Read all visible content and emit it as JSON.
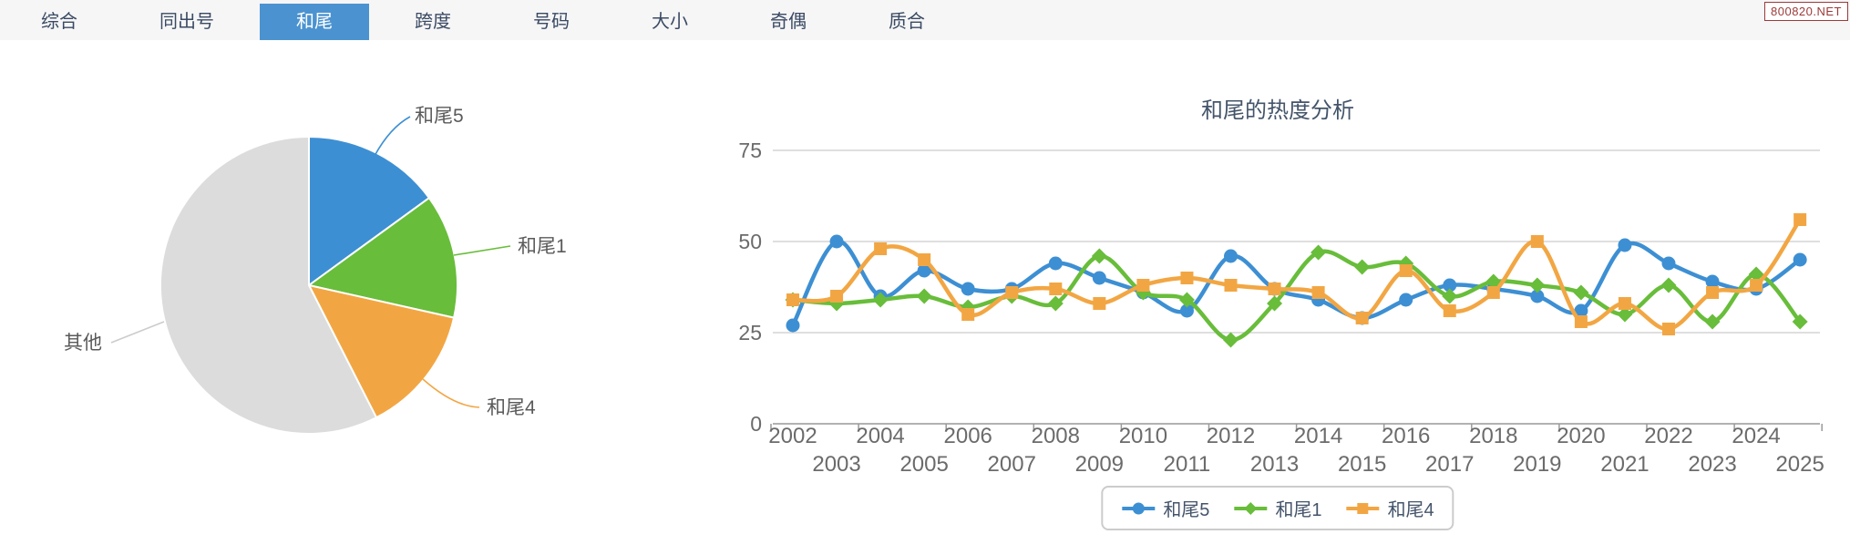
{
  "tabs": {
    "items": [
      {
        "id": "zonghe",
        "label": "综合",
        "active": false
      },
      {
        "id": "tongchuhao",
        "label": "同出号",
        "active": false
      },
      {
        "id": "hewei",
        "label": "和尾",
        "active": true
      },
      {
        "id": "kuadu",
        "label": "跨度",
        "active": false
      },
      {
        "id": "haoma",
        "label": "号码",
        "active": false
      },
      {
        "id": "daxiao",
        "label": "大小",
        "active": false
      },
      {
        "id": "jiou",
        "label": "奇偶",
        "active": false
      },
      {
        "id": "zhihe",
        "label": "质合",
        "active": false
      }
    ]
  },
  "badge": {
    "text": "800820.NET"
  },
  "theme": {
    "tab_active_bg": "#4b93d0",
    "blue": "#3d8fd3",
    "green": "#68bd3a",
    "orange": "#f2a643",
    "gray": "#dcdcdc"
  },
  "chart_data": [
    {
      "type": "pie",
      "start_angle_deg": 0,
      "direction": "clockwise",
      "slices": [
        {
          "id": "hewei5",
          "label": "和尾5",
          "value_pct": 15.0,
          "color": "#3d8fd3"
        },
        {
          "id": "hewei1",
          "label": "和尾1",
          "value_pct": 13.5,
          "color": "#68bd3a"
        },
        {
          "id": "hewei4",
          "label": "和尾4",
          "value_pct": 14.0,
          "color": "#f2a643"
        },
        {
          "id": "qita",
          "label": "其他",
          "value_pct": 57.5,
          "color": "#dcdcdc"
        }
      ]
    },
    {
      "type": "line",
      "title": "和尾的热度分析",
      "x": [
        2002,
        2003,
        2004,
        2005,
        2006,
        2007,
        2008,
        2009,
        2010,
        2011,
        2012,
        2013,
        2014,
        2015,
        2016,
        2017,
        2018,
        2019,
        2020,
        2021,
        2022,
        2023,
        2024,
        2025
      ],
      "series": [
        {
          "id": "hewei5",
          "name": "和尾5",
          "marker": "circle",
          "color": "#3d8fd3",
          "values": [
            27,
            50,
            35,
            42,
            37,
            37,
            44,
            40,
            36,
            31,
            46,
            37,
            34,
            29,
            34,
            38,
            37,
            35,
            31,
            49,
            44,
            39,
            37,
            45
          ]
        },
        {
          "id": "hewei1",
          "name": "和尾1",
          "marker": "diamond",
          "color": "#68bd3a",
          "values": [
            34,
            33,
            34,
            35,
            32,
            35,
            33,
            46,
            36,
            34,
            23,
            33,
            47,
            43,
            44,
            35,
            39,
            38,
            36,
            30,
            38,
            28,
            41,
            28
          ]
        },
        {
          "id": "hewei4",
          "name": "和尾4",
          "marker": "square",
          "color": "#f2a643",
          "values": [
            34,
            35,
            48,
            45,
            30,
            36,
            37,
            33,
            38,
            40,
            38,
            37,
            36,
            29,
            42,
            31,
            36,
            50,
            28,
            33,
            26,
            36,
            38,
            56
          ]
        }
      ],
      "ylim": [
        0,
        75
      ],
      "yticks": [
        0,
        25,
        50,
        75
      ],
      "grid": "horizontal",
      "legend_position": "bottom",
      "smooth": true
    }
  ]
}
